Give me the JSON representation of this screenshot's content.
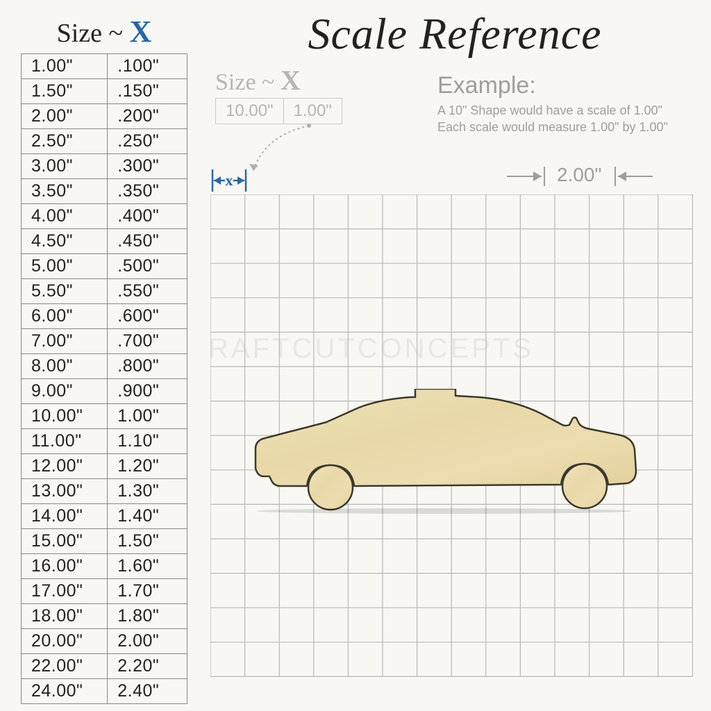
{
  "title": "Scale Reference",
  "size_header_prefix": "Size ~ ",
  "size_header_x": "X",
  "sub_sizex_prefix": "Size ~ ",
  "sub_sizex_x": "X",
  "sub_sizex_cells": [
    "10.00\"",
    "1.00\""
  ],
  "example_header": "Example:",
  "example_line1": "A 10\" Shape would have a scale of 1.00\"",
  "example_line2": "Each scale would measure 1.00\" by 1.00\"",
  "x_marker_label": "x",
  "two_inch_label": "2.00\"",
  "watermark": "RAFTCUTCONCEPTS",
  "table_rows": [
    [
      "1.00\"",
      ".100\""
    ],
    [
      "1.50\"",
      ".150\""
    ],
    [
      "2.00\"",
      ".200\""
    ],
    [
      "2.50\"",
      ".250\""
    ],
    [
      "3.00\"",
      ".300\""
    ],
    [
      "3.50\"",
      ".350\""
    ],
    [
      "4.00\"",
      ".400\""
    ],
    [
      "4.50\"",
      ".450\""
    ],
    [
      "5.00\"",
      ".500\""
    ],
    [
      "5.50\"",
      ".550\""
    ],
    [
      "6.00\"",
      ".600\""
    ],
    [
      "7.00\"",
      ".700\""
    ],
    [
      "8.00\"",
      ".800\""
    ],
    [
      "9.00\"",
      ".900\""
    ],
    [
      "10.00\"",
      "1.00\""
    ],
    [
      "11.00\"",
      "1.10\""
    ],
    [
      "12.00\"",
      "1.20\""
    ],
    [
      "13.00\"",
      "1.30\""
    ],
    [
      "14.00\"",
      "1.40\""
    ],
    [
      "15.00\"",
      "1.50\""
    ],
    [
      "16.00\"",
      "1.60\""
    ],
    [
      "17.00\"",
      "1.70\""
    ],
    [
      "18.00\"",
      "1.80\""
    ],
    [
      "20.00\"",
      "2.00\""
    ],
    [
      "22.00\"",
      "2.20\""
    ],
    [
      "24.00\"",
      "2.40\""
    ]
  ],
  "grid": {
    "cells": 14,
    "cell_size": 49.6,
    "line_color": "#b8b8b8",
    "line_width": 1.2,
    "background": "transparent"
  },
  "colors": {
    "accent_blue": "#2b66a6",
    "text": "#222222",
    "gray": "#9e9e9e",
    "light_gray": "#c8c8c8",
    "car_fill": "#eadcb0",
    "car_stroke": "#3a3a2a"
  },
  "car": {
    "description": "taxi-car-silhouette",
    "fill": "#eadcb0",
    "stroke": "#3a3a2a",
    "stroke_width": 2.5,
    "width_cells": 10,
    "height_cells": 3
  }
}
